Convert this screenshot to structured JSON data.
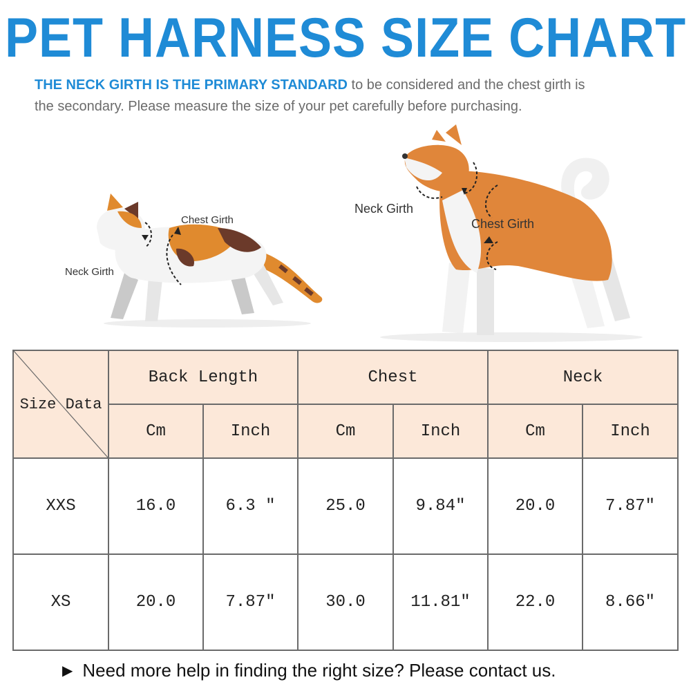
{
  "title": "PET HARNESS SIZE CHART",
  "intro": {
    "emphasis": "THE NECK GIRTH IS THE PRIMARY STANDARD",
    "rest_line1": " to be considered and the chest girth is",
    "line2": "the secondary. Please measure the size of your pet carefully before purchasing."
  },
  "illustration": {
    "cat_chest_label": "Chest Girth",
    "cat_neck_label": "Neck Girth",
    "dog_neck_label": "Neck Girth",
    "dog_chest_label": "Chest Girth"
  },
  "table": {
    "corner_label": "Size Data",
    "groups": [
      "Back Length",
      "Chest",
      "Neck"
    ],
    "units": [
      "Cm",
      "Inch",
      "Cm",
      "Inch",
      "Cm",
      "Inch"
    ],
    "rows": [
      {
        "size": "XXS",
        "values": [
          "16.0",
          "6.3 ″",
          "25.0",
          "9.84″",
          "20.0",
          "7.87″"
        ]
      },
      {
        "size": "XS",
        "values": [
          "20.0",
          "7.87″",
          "30.0",
          "11.81″",
          "22.0",
          "8.66″"
        ]
      }
    ]
  },
  "footer": {
    "arrow": "▶",
    "text": "Need more help in finding the right size? Please contact us."
  },
  "colors": {
    "title_blue": "#1f8bd6",
    "header_fill": "#fce8d9",
    "dog_orange": "#e0863a",
    "cat_orange": "#e08a2e",
    "cat_brown": "#6b3a2a"
  }
}
